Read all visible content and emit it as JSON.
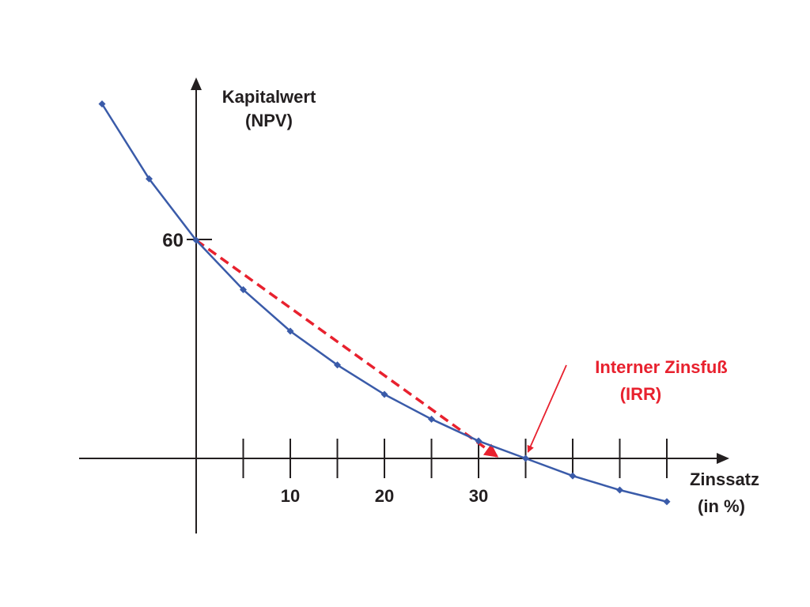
{
  "chart_data": {
    "type": "line",
    "ylabel_line1": "Kapitalwert",
    "ylabel_line2": "(NPV)",
    "xlabel_line1": "Zinssatz",
    "xlabel_line2": "(in %)",
    "y_tick_label": "60",
    "y_tick_value": 60,
    "x_tick_labels": [
      "10",
      "20",
      "30"
    ],
    "x_tick_values": [
      5,
      10,
      15,
      20,
      25,
      30,
      35,
      40,
      45,
      50
    ],
    "xlim": [
      -12.5,
      57
    ],
    "ylim": [
      -20.5,
      101
    ],
    "grid": false,
    "colors": {
      "curve": "#3a5ba9",
      "tangent": "#e8212e",
      "axis": "#231f20",
      "annotation": "#e8212e"
    },
    "series": [
      {
        "x": [
          -10,
          -5,
          0,
          5,
          10,
          15,
          20,
          25,
          30,
          35,
          40,
          45,
          50
        ],
        "y": [
          97.5,
          76.9,
          60,
          46.4,
          35.0,
          25.7,
          17.6,
          10.8,
          4.8,
          0,
          -4.8,
          -8.7,
          -11.9
        ]
      }
    ],
    "tangent": {
      "x": [
        0,
        32
      ],
      "y": [
        60,
        0.5
      ]
    },
    "annotation": {
      "line1": "Interner Zinsfuß",
      "line2": "(IRR)",
      "target_x": 35,
      "target_y": 0
    }
  }
}
